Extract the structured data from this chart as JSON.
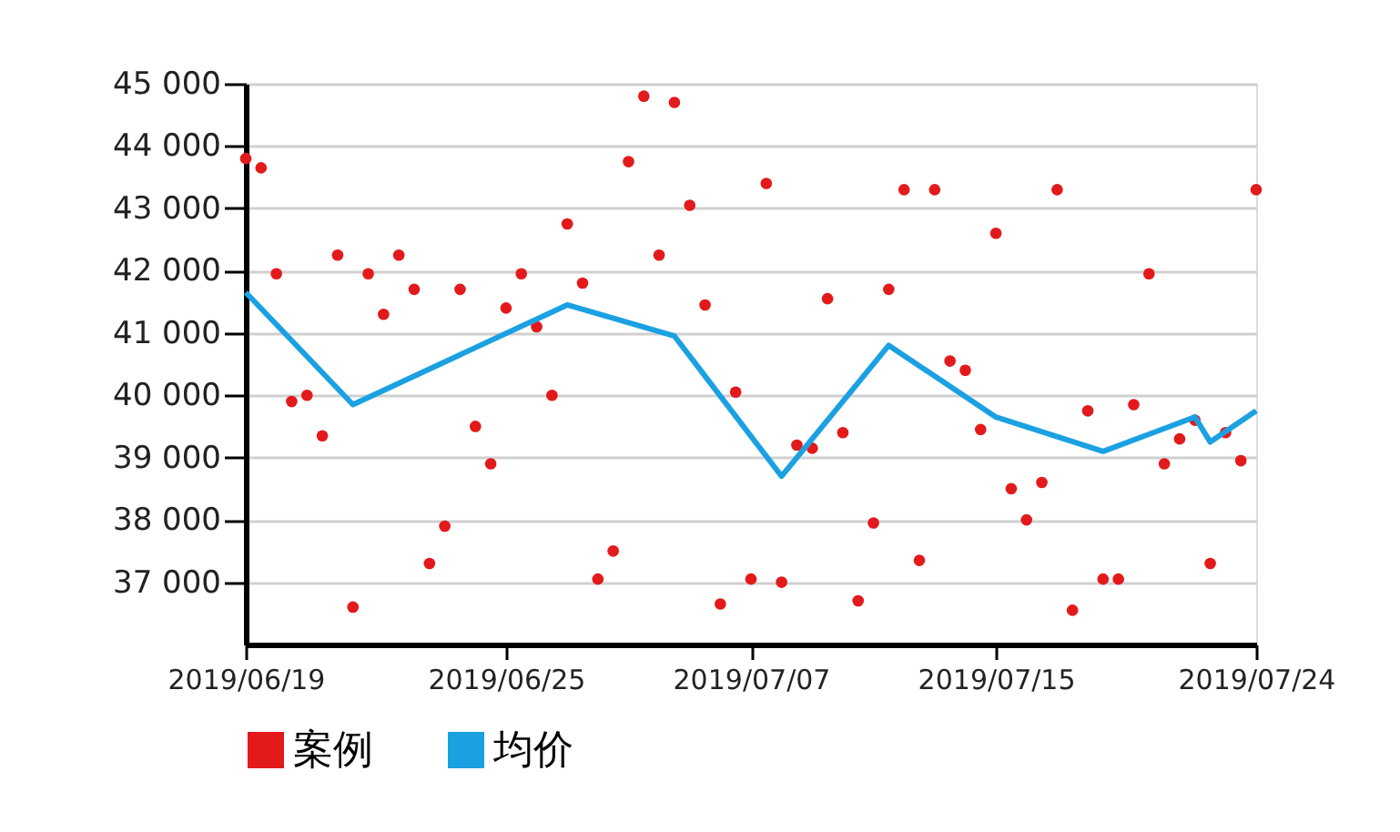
{
  "chart_data": {
    "type": "scatter",
    "categories": [
      "2019/06/19",
      null,
      null,
      null,
      null,
      null,
      null,
      null,
      null,
      null,
      null,
      null,
      null,
      null,
      null,
      null,
      null,
      "2019/06/25",
      null,
      null,
      null,
      null,
      null,
      null,
      null,
      null,
      null,
      null,
      null,
      null,
      null,
      null,
      null,
      "2019/07/07",
      null,
      null,
      null,
      null,
      null,
      null,
      null,
      null,
      null,
      null,
      null,
      null,
      null,
      null,
      null,
      "2019/07/15",
      null,
      null,
      null,
      null,
      null,
      null,
      null,
      null,
      null,
      null,
      null,
      null,
      null,
      null,
      null,
      null,
      "2019/07/24"
    ],
    "ylim": [
      36000,
      45000
    ],
    "yticks": [
      {
        "value": 37000,
        "label": "37 000"
      },
      {
        "value": 38000,
        "label": "38 000"
      },
      {
        "value": 39000,
        "label": "39 000"
      },
      {
        "value": 40000,
        "label": "40 000"
      },
      {
        "value": 41000,
        "label": "41 000"
      },
      {
        "value": 42000,
        "label": "42 000"
      },
      {
        "value": 43000,
        "label": "43 000"
      },
      {
        "value": 44000,
        "label": "44 000"
      },
      {
        "value": 45000,
        "label": "45 000"
      }
    ],
    "grid": "y",
    "legend": "bottom",
    "series": [
      {
        "name": "案例",
        "marker": "circle",
        "color": "#e31a1c",
        "values": [
          43800,
          43650,
          41950,
          39900,
          40000,
          39350,
          42250,
          36600,
          41950,
          41300,
          42250,
          41700,
          37300,
          37900,
          41700,
          39500,
          38900,
          41400,
          41950,
          41100,
          40000,
          42750,
          41800,
          37050,
          37500,
          43750,
          44800,
          42250,
          44700,
          43050,
          41450,
          36650,
          40050,
          37050,
          43400,
          37000,
          39200,
          39150,
          41550,
          39400,
          36700,
          37950,
          41700,
          43300,
          37350,
          43300,
          40550,
          40400,
          39450,
          42600,
          38500,
          38000,
          38600,
          43300,
          36550,
          39750,
          37050,
          37050,
          39850,
          41950,
          38900,
          39300,
          39600,
          37300,
          39400,
          38950,
          43300
        ]
      },
      {
        "name": "均价",
        "type": "line",
        "marker": "none",
        "line_style": "solid",
        "color": "#1ba1e2",
        "values": [
          41650,
          null,
          null,
          null,
          null,
          null,
          null,
          39850,
          null,
          null,
          null,
          null,
          null,
          null,
          null,
          null,
          null,
          null,
          null,
          null,
          null,
          41450,
          null,
          null,
          null,
          null,
          null,
          null,
          40950,
          null,
          null,
          null,
          null,
          null,
          null,
          38700,
          null,
          null,
          null,
          null,
          null,
          null,
          40800,
          null,
          null,
          null,
          null,
          null,
          null,
          39650,
          null,
          null,
          null,
          null,
          null,
          null,
          39100,
          null,
          null,
          null,
          null,
          null,
          39650,
          39250,
          null,
          null,
          39750
        ]
      }
    ]
  }
}
